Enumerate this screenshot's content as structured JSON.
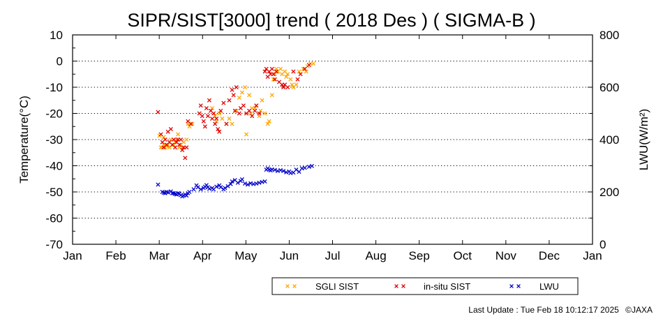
{
  "chart_data": {
    "type": "scatter",
    "title": "SIPR/SIST[3000] trend ( 2018 Des ) ( SIGMA-B )",
    "xlabel": "",
    "ylabel": "Temperature(°C)",
    "y2label": "LWU(W/m²)",
    "x_tick_labels": [
      "Jan",
      "Feb",
      "Mar",
      "Apr",
      "May",
      "Jun",
      "Jul",
      "Aug",
      "Sep",
      "Oct",
      "Nov",
      "Dec",
      "Jan"
    ],
    "ylim": [
      -70,
      10
    ],
    "y_ticks": [
      10,
      0,
      -10,
      -20,
      -30,
      -40,
      -50,
      -60,
      -70
    ],
    "y2lim": [
      0,
      800
    ],
    "y2_ticks": [
      800,
      600,
      400,
      200,
      0
    ],
    "grid": true,
    "legend_position": "bottom",
    "series": [
      {
        "name": "SGLI SIST",
        "color": "#ffa500",
        "marker": "×",
        "axis": "left",
        "points": [
          [
            61,
            -28.5
          ],
          [
            62,
            -33
          ],
          [
            63,
            -33
          ],
          [
            64,
            -32
          ],
          [
            64,
            -29
          ],
          [
            65,
            -33
          ],
          [
            66,
            -32.5
          ],
          [
            67,
            -32
          ],
          [
            68,
            -33
          ],
          [
            69,
            -30
          ],
          [
            70,
            -32
          ],
          [
            71,
            -32
          ],
          [
            72,
            -31
          ],
          [
            73,
            -30
          ],
          [
            74,
            -28
          ],
          [
            75,
            -33
          ],
          [
            76,
            -32
          ],
          [
            77,
            -33
          ],
          [
            78,
            -31
          ],
          [
            80,
            -30
          ],
          [
            81,
            -24
          ],
          [
            82,
            -25
          ],
          [
            84,
            -24
          ],
          [
            98,
            -18
          ],
          [
            100,
            -21
          ],
          [
            101,
            -23
          ],
          [
            103,
            -20
          ],
          [
            105,
            -22
          ],
          [
            108,
            -24
          ],
          [
            110,
            -22
          ],
          [
            112,
            -24
          ],
          [
            115,
            -19
          ],
          [
            117,
            -14
          ],
          [
            119,
            -12
          ],
          [
            121,
            -10
          ],
          [
            124,
            -13
          ],
          [
            125,
            -20
          ],
          [
            126,
            -18
          ],
          [
            128,
            -18
          ],
          [
            129,
            -17
          ],
          [
            131,
            -21
          ],
          [
            132,
            -19
          ],
          [
            133,
            -15
          ],
          [
            135,
            -20
          ],
          [
            137,
            -24
          ],
          [
            138,
            -23
          ],
          [
            140,
            -13
          ],
          [
            141,
            -7
          ],
          [
            142,
            -5
          ],
          [
            143,
            -3
          ],
          [
            144,
            -4
          ],
          [
            146,
            -3
          ],
          [
            147,
            -5
          ],
          [
            149,
            -4
          ],
          [
            150,
            -6
          ],
          [
            151,
            -5
          ],
          [
            153,
            -7
          ],
          [
            154,
            -9
          ],
          [
            155,
            -10
          ],
          [
            157,
            -9
          ],
          [
            159,
            -4
          ],
          [
            162,
            -3
          ],
          [
            164,
            -4
          ],
          [
            165,
            -2
          ],
          [
            167,
            -1
          ],
          [
            169,
            -1
          ],
          [
            122,
            -28
          ]
        ]
      },
      {
        "name": "in-situ SIST",
        "color": "#e00000",
        "marker": "×",
        "axis": "left",
        "points": [
          [
            60,
            -19.5
          ],
          [
            62,
            -28
          ],
          [
            63,
            -31
          ],
          [
            64,
            -33
          ],
          [
            65,
            -30
          ],
          [
            66,
            -32
          ],
          [
            67,
            -27
          ],
          [
            68,
            -31
          ],
          [
            69,
            -26
          ],
          [
            70,
            -32
          ],
          [
            71,
            -30
          ],
          [
            72,
            -33
          ],
          [
            73,
            -31
          ],
          [
            74,
            -30
          ],
          [
            75,
            -32
          ],
          [
            76,
            -30
          ],
          [
            77,
            -34
          ],
          [
            78,
            -33
          ],
          [
            79,
            -37
          ],
          [
            80,
            -33
          ],
          [
            81,
            -23
          ],
          [
            83,
            -24
          ],
          [
            89,
            -20
          ],
          [
            90,
            -17
          ],
          [
            91,
            -21
          ],
          [
            92,
            -23
          ],
          [
            93,
            -25
          ],
          [
            94,
            -18
          ],
          [
            95,
            -21
          ],
          [
            96,
            -15
          ],
          [
            97,
            -19
          ],
          [
            98,
            -22
          ],
          [
            99,
            -20
          ],
          [
            100,
            -24
          ],
          [
            101,
            -22
          ],
          [
            102,
            -26
          ],
          [
            103,
            -27
          ],
          [
            104,
            -19
          ],
          [
            106,
            -16
          ],
          [
            108,
            -24
          ],
          [
            110,
            -15
          ],
          [
            112,
            -11
          ],
          [
            113,
            -13
          ],
          [
            114,
            -19
          ],
          [
            115,
            -10
          ],
          [
            117,
            -20
          ],
          [
            118,
            -18
          ],
          [
            120,
            -17
          ],
          [
            122,
            -20
          ],
          [
            124,
            -19
          ],
          [
            126,
            -21
          ],
          [
            128,
            -19
          ],
          [
            129,
            -17
          ],
          [
            131,
            -20
          ],
          [
            135,
            -4
          ],
          [
            136,
            -3
          ],
          [
            137,
            -6
          ],
          [
            138,
            -4
          ],
          [
            139,
            -5
          ],
          [
            140,
            -3
          ],
          [
            141,
            -5
          ],
          [
            142,
            -7
          ],
          [
            143,
            -4
          ],
          [
            145,
            -8
          ],
          [
            147,
            -9
          ],
          [
            148,
            -10
          ],
          [
            149,
            -9
          ],
          [
            151,
            -10
          ],
          [
            155,
            -4
          ],
          [
            158,
            -7
          ],
          [
            160,
            -5
          ],
          [
            163,
            -3
          ],
          [
            166,
            -1.5
          ]
        ]
      },
      {
        "name": "LWU",
        "color": "#0000cc",
        "marker": "×",
        "axis": "right",
        "points": [
          [
            60,
            228
          ],
          [
            63,
            200
          ],
          [
            64,
            197
          ],
          [
            65,
            195
          ],
          [
            66,
            200
          ],
          [
            67,
            198
          ],
          [
            69,
            202
          ],
          [
            70,
            195
          ],
          [
            71,
            195
          ],
          [
            72,
            192
          ],
          [
            73,
            190
          ],
          [
            74,
            195
          ],
          [
            75,
            193
          ],
          [
            76,
            188
          ],
          [
            77,
            183
          ],
          [
            78,
            186
          ],
          [
            79,
            190
          ],
          [
            80,
            186
          ],
          [
            81,
            195
          ],
          [
            82,
            200
          ],
          [
            85,
            210
          ],
          [
            87,
            225
          ],
          [
            88,
            218
          ],
          [
            90,
            210
          ],
          [
            92,
            215
          ],
          [
            93,
            220
          ],
          [
            94,
            226
          ],
          [
            95,
            218
          ],
          [
            96,
            212
          ],
          [
            98,
            215
          ],
          [
            99,
            210
          ],
          [
            101,
            220
          ],
          [
            103,
            225
          ],
          [
            104,
            218
          ],
          [
            106,
            210
          ],
          [
            107,
            215
          ],
          [
            109,
            222
          ],
          [
            111,
            230
          ],
          [
            112,
            240
          ],
          [
            114,
            245
          ],
          [
            116,
            235
          ],
          [
            118,
            242
          ],
          [
            119,
            248
          ],
          [
            121,
            232
          ],
          [
            123,
            228
          ],
          [
            125,
            233
          ],
          [
            127,
            230
          ],
          [
            129,
            232
          ],
          [
            131,
            235
          ],
          [
            133,
            238
          ],
          [
            135,
            240
          ],
          [
            136,
            285
          ],
          [
            137,
            290
          ],
          [
            138,
            285
          ],
          [
            139,
            282
          ],
          [
            140,
            286
          ],
          [
            142,
            284
          ],
          [
            144,
            280
          ],
          [
            146,
            283
          ],
          [
            148,
            280
          ],
          [
            150,
            275
          ],
          [
            152,
            278
          ],
          [
            153,
            272
          ],
          [
            155,
            274
          ],
          [
            157,
            285
          ],
          [
            159,
            277
          ],
          [
            161,
            290
          ],
          [
            163,
            292
          ],
          [
            166,
            296
          ],
          [
            168,
            299
          ]
        ]
      }
    ],
    "legend": [
      {
        "label": "SGLI SIST",
        "color": "#ffa500"
      },
      {
        "label": "in-situ SIST",
        "color": "#e00000"
      },
      {
        "label": "LWU",
        "color": "#0000cc"
      }
    ]
  },
  "footer": {
    "last_update": "Last Update : Tue Feb 18 10:12:17 2025",
    "copyright": "©JAXA"
  }
}
